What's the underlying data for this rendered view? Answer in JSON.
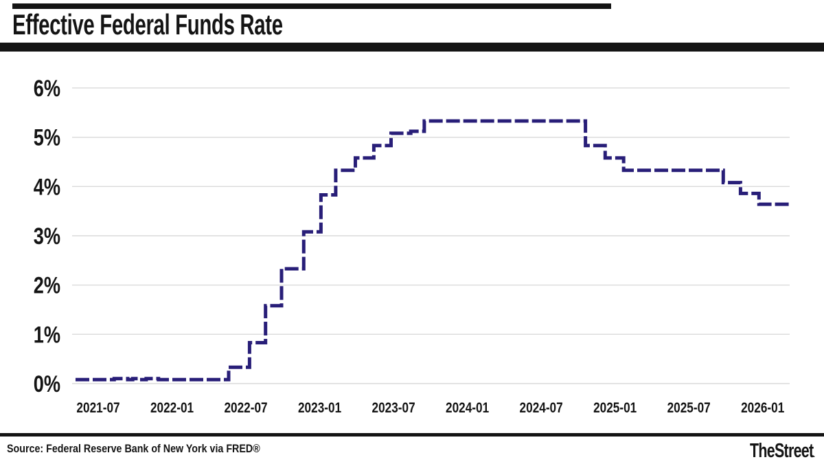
{
  "header": {
    "title": "Effective Federal Funds Rate"
  },
  "footer": {
    "source": "Source: Federal Reserve Bank of New York via FRED®",
    "brand": "TheStreet",
    "brand_dot": "."
  },
  "colors": {
    "line": "#281e78",
    "grid": "#dadada",
    "bars": "#141414",
    "text": "#141414"
  },
  "chart_data": {
    "type": "line",
    "title": "Effective Federal Funds Rate",
    "series_name": "Effective federal funds rate (%)",
    "line_style": "stepped, dashed, dark indigo",
    "legend": "none",
    "grid": "horizontal gridlines only",
    "x_axis": {
      "t_unit": "months since 2021-07 tick",
      "ticks": [
        {
          "label": "2021-07",
          "t": 0
        },
        {
          "label": "2022-01",
          "t": 6
        },
        {
          "label": "2022-07",
          "t": 12
        },
        {
          "label": "2023-01",
          "t": 18
        },
        {
          "label": "2023-07",
          "t": 24
        },
        {
          "label": "2024-01",
          "t": 30
        },
        {
          "label": "2024-07",
          "t": 36
        },
        {
          "label": "2025-01",
          "t": 42
        },
        {
          "label": "2025-07",
          "t": 48
        },
        {
          "label": "2026-01",
          "t": 54
        }
      ]
    },
    "y_axis": {
      "ticks": [
        {
          "label": "0%",
          "value": 0
        },
        {
          "label": "1%",
          "value": 1
        },
        {
          "label": "2%",
          "value": 2
        },
        {
          "label": "3%",
          "value": 3
        },
        {
          "label": "4%",
          "value": 4
        },
        {
          "label": "5%",
          "value": 5
        },
        {
          "label": "6%",
          "value": 6
        }
      ],
      "range": [
        0,
        6.3
      ]
    },
    "points": [
      {
        "t": -1.84,
        "date": "2021-05",
        "rate": 0.08
      },
      {
        "t": 1.3,
        "date": "2021-08",
        "rate": 0.1
      },
      {
        "t": 2.4,
        "date": "2021-09",
        "rate": 0.08
      },
      {
        "t": 2.8,
        "date": "2021-10",
        "rate": 0.1
      },
      {
        "t": 3.3,
        "date": "2021-10",
        "rate": 0.08
      },
      {
        "t": 3.9,
        "date": "2021-11",
        "rate": 0.1
      },
      {
        "t": 4.9,
        "date": "2021-12",
        "rate": 0.08
      },
      {
        "t": 10.6,
        "date": "2022-03",
        "rate": 0.33
      },
      {
        "t": 12.3,
        "date": "2022-05",
        "rate": 0.83
      },
      {
        "t": 13.6,
        "date": "2022-06",
        "rate": 1.58
      },
      {
        "t": 14.9,
        "date": "2022-07",
        "rate": 2.33
      },
      {
        "t": 16.7,
        "date": "2022-09",
        "rate": 3.08
      },
      {
        "t": 18.1,
        "date": "2022-11",
        "rate": 3.83
      },
      {
        "t": 19.3,
        "date": "2022-12",
        "rate": 4.33
      },
      {
        "t": 20.9,
        "date": "2023-02",
        "rate": 4.58
      },
      {
        "t": 22.4,
        "date": "2023-03",
        "rate": 4.83
      },
      {
        "t": 23.8,
        "date": "2023-05",
        "rate": 5.08
      },
      {
        "t": 25.4,
        "date": "2023-06",
        "rate": 5.12
      },
      {
        "t": 26.5,
        "date": "2023-07",
        "rate": 5.33
      },
      {
        "t": 39.6,
        "date": "2024-09",
        "rate": 4.83
      },
      {
        "t": 41.2,
        "date": "2024-11",
        "rate": 4.58
      },
      {
        "t": 42.7,
        "date": "2024-12",
        "rate": 4.33
      },
      {
        "t": 50.8,
        "date": "2025-09",
        "rate": 4.08
      },
      {
        "t": 52.2,
        "date": "2025-10",
        "rate": 3.86
      },
      {
        "t": 53.7,
        "date": "2025-12",
        "rate": 3.64
      },
      {
        "t": 56.2,
        "date": "2026-01",
        "rate": 3.64
      }
    ]
  }
}
